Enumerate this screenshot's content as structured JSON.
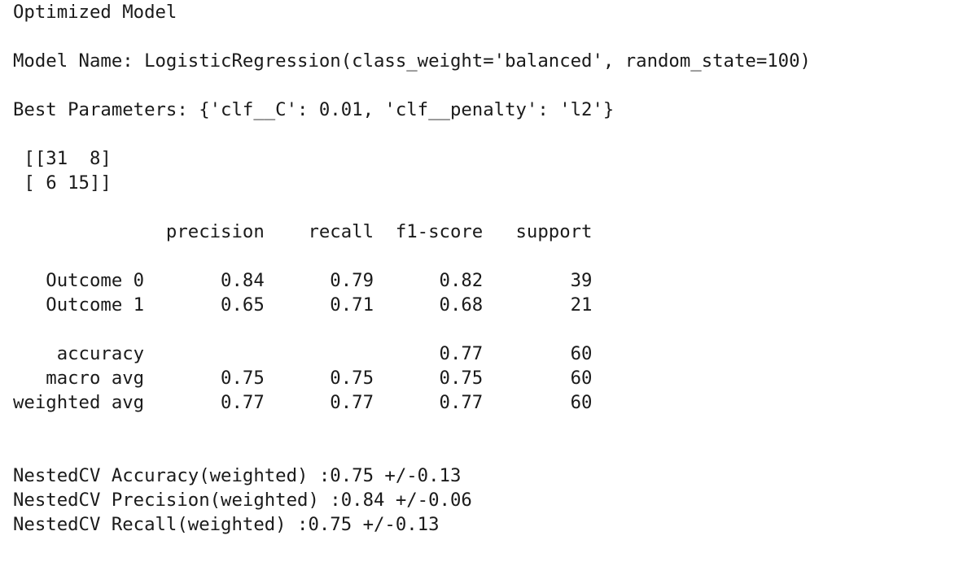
{
  "output": {
    "title": "Optimized Model",
    "model_name": "Model Name: LogisticRegression(class_weight='balanced', random_state=100)",
    "best_parameters": "Best Parameters: {'clf__C': 0.01, 'clf__penalty': 'l2'}",
    "confusion_matrix": {
      "row_0": " [[31  8]",
      "row_1": " [ 6 15]]"
    },
    "classification_report": {
      "header": "              precision    recall  f1-score   support",
      "outcome_0": "   Outcome 0       0.84      0.79      0.82        39",
      "outcome_1": "   Outcome 1       0.65      0.71      0.68        21",
      "accuracy": "    accuracy                           0.77        60",
      "macro_avg": "   macro avg       0.75      0.75      0.75        60",
      "weighted_avg": "weighted avg       0.77      0.77      0.77        60"
    },
    "nested_cv": {
      "accuracy": "NestedCV Accuracy(weighted) :0.75 +/-0.13",
      "precision": "NestedCV Precision(weighted) :0.84 +/-0.06",
      "recall": "NestedCV Recall(weighted) :0.75 +/-0.13"
    }
  }
}
